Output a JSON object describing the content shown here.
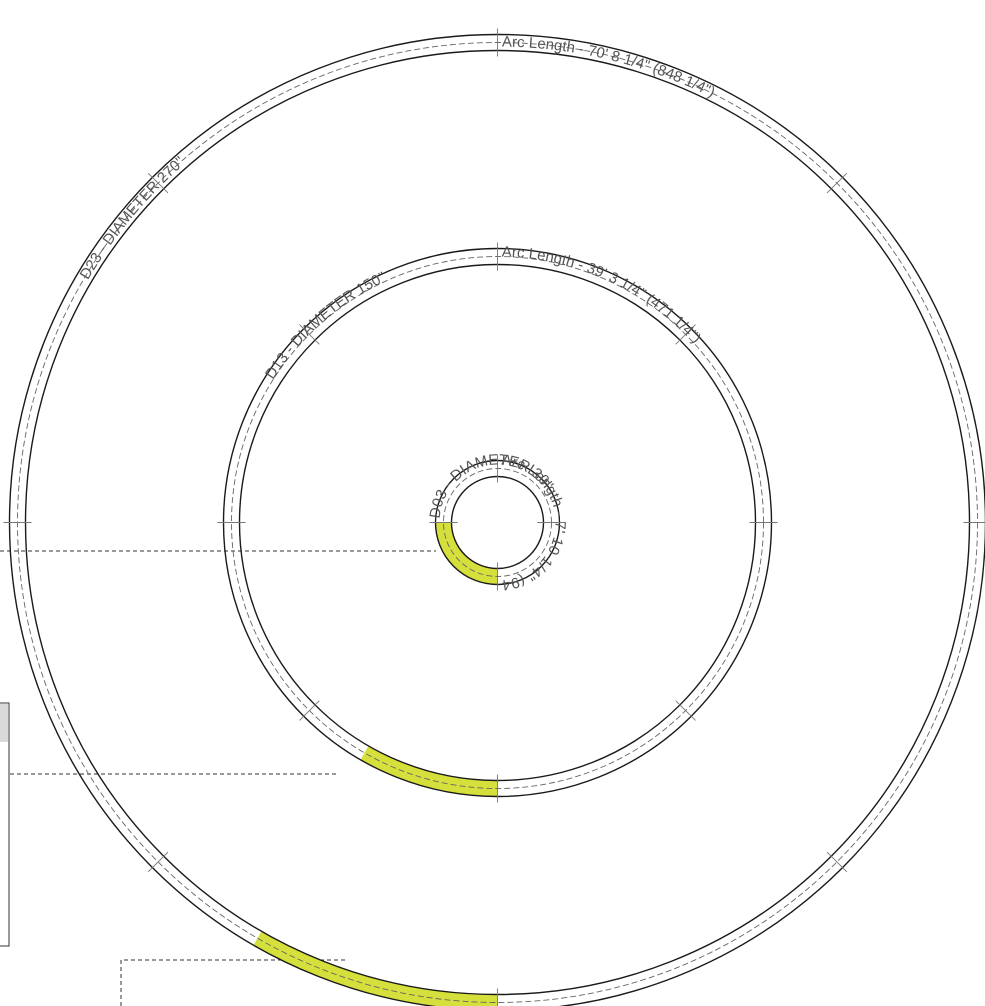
{
  "colors": {
    "highlight": "#d6e03c",
    "ring_line": "#1a1a1a",
    "label": "#555555"
  },
  "rings": [
    {
      "id": "d23",
      "diameter_label": "D23 - DIAMETER 270\"",
      "arc_label": "Arc Length - 70' 8 1/4\" (848 1/4\")",
      "highlight_from_deg": 90,
      "highlight_to_deg": 120
    },
    {
      "id": "d13",
      "diameter_label": "D13 - DIAMETER 150\"",
      "arc_label": "Arc Length - 39' 3 1/4\" (471 1/4\")",
      "highlight_from_deg": 90,
      "highlight_to_deg": 120
    },
    {
      "id": "d03",
      "diameter_label": "D03 - DIAMETER 30\"",
      "arc_label": "Arc Length - 7' 10 1/4\" (94 1/4\")",
      "highlight_from_deg": 90,
      "highlight_to_deg": 180
    }
  ]
}
